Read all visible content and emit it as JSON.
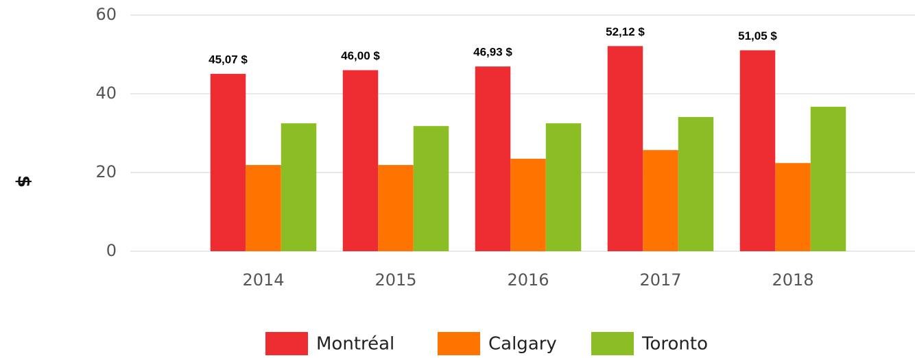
{
  "chart_data": {
    "type": "bar",
    "y_label": "$",
    "categories": [
      "2014",
      "2015",
      "2016",
      "2017",
      "2018"
    ],
    "series": [
      {
        "name": "Montréal",
        "color": "#ee2d33",
        "values": [
          45.07,
          46.0,
          46.93,
          52.12,
          51.05
        ],
        "value_labels": [
          "45,07 $",
          "46,00 $",
          "46,93 $",
          "52,12 $",
          "51,05 $"
        ]
      },
      {
        "name": "Calgary",
        "color": "#ff7300",
        "values": [
          21.9,
          21.9,
          23.5,
          25.7,
          22.4
        ]
      },
      {
        "name": "Toronto",
        "color": "#8bbd24",
        "values": [
          32.5,
          31.8,
          32.5,
          34.1,
          36.7
        ]
      }
    ],
    "ylim": [
      0,
      60
    ],
    "yticks": [
      0,
      20,
      40,
      60
    ],
    "grid": true,
    "legend": "bottom"
  }
}
